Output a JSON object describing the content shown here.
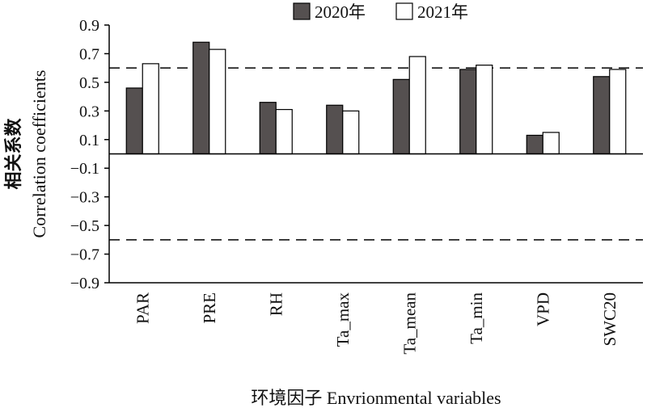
{
  "chart_data": {
    "type": "bar",
    "categories": [
      "PAR",
      "PRE",
      "RH",
      "Ta_max",
      "Ta_mean",
      "Ta_min",
      "VPD",
      "SWC20"
    ],
    "series": [
      {
        "name": "2020年",
        "color": "#555050",
        "values": [
          0.46,
          0.78,
          0.36,
          0.34,
          0.52,
          0.59,
          0.13,
          0.54
        ]
      },
      {
        "name": "2021年",
        "color": "#ffffff",
        "values": [
          0.63,
          0.73,
          0.31,
          0.3,
          0.68,
          0.62,
          0.15,
          0.59
        ]
      }
    ],
    "ylabel_cn": "相关系数",
    "ylabel_en": "Correlation coefficients",
    "xlabel": "环境因子 Envrionmental variables",
    "ylim": [
      -0.9,
      0.9
    ],
    "yticks": [
      "0.9",
      "0.7",
      "0.5",
      "0.3",
      "0.1",
      "−0.1",
      "−0.3",
      "−0.5",
      "−0.7",
      "−0.9"
    ],
    "ytick_values": [
      0.9,
      0.7,
      0.5,
      0.3,
      0.1,
      -0.1,
      -0.3,
      -0.5,
      -0.7,
      -0.9
    ],
    "reference_lines": [
      0.6,
      -0.6
    ],
    "legend_position": "top",
    "grid": false
  }
}
